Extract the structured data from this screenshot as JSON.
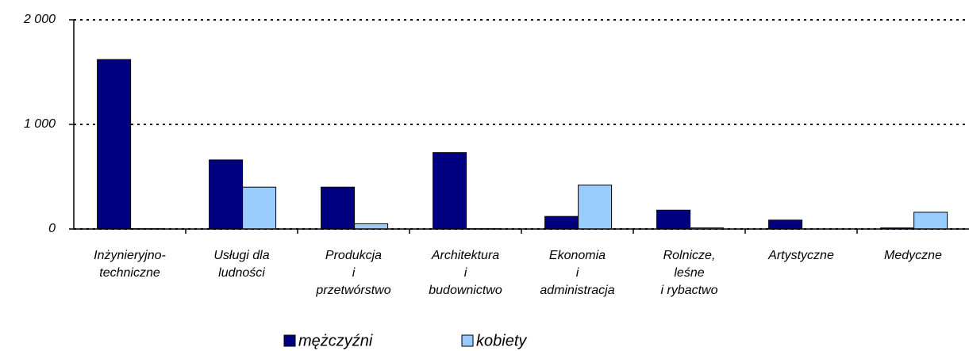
{
  "chart_data": {
    "type": "bar",
    "categories": [
      "Inżynieryjno-\ntechniczne",
      "Usługi dla\nludności",
      "Produkcja\ni\nprzetwórstwo",
      "Architektura\ni\nbudownictwo",
      "Ekonomia\ni\nadministracja",
      "Rolnicze,\nleśne\ni rybactwo",
      "Artystyczne",
      "Medyczne"
    ],
    "series": [
      {
        "name": "mężczyźni",
        "color": "#000080",
        "values": [
          1620,
          660,
          400,
          730,
          120,
          180,
          85,
          10
        ]
      },
      {
        "name": "kobiety",
        "color": "#99ccff",
        "values": [
          3,
          400,
          50,
          3,
          420,
          10,
          0,
          160
        ]
      }
    ],
    "ylim": [
      0,
      2000
    ],
    "yticks": [
      {
        "value": 0,
        "label": "0"
      },
      {
        "value": 1000,
        "label": "1 000"
      },
      {
        "value": 2000,
        "label": "2 000"
      }
    ],
    "grid": true,
    "legend": "bottom"
  }
}
